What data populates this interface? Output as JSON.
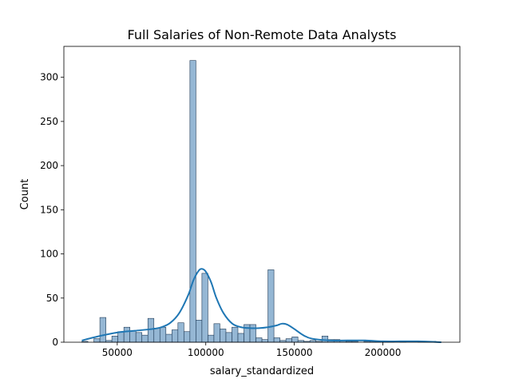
{
  "chart_data": {
    "type": "bar",
    "title": "Full Salaries of Non-Remote Data Analysts",
    "xlabel": "salary_standardized",
    "ylabel": "Count",
    "xlim": [
      19848,
      243532
    ],
    "ylim": [
      0,
      335
    ],
    "xticks": [
      50000,
      100000,
      150000,
      200000
    ],
    "xtick_labels": [
      "50000",
      "100000",
      "150000",
      "200000"
    ],
    "yticks": [
      0,
      50,
      100,
      150,
      200,
      250,
      300
    ],
    "ytick_labels": [
      "0",
      "50",
      "100",
      "150",
      "200",
      "250",
      "300"
    ],
    "grid": false,
    "bar_fill": "#8fb3d2",
    "bar_edge": "#1f3a56",
    "kde_color": "#1f77b4",
    "bins": {
      "start": 30016,
      "width": 3390,
      "counts": [
        1,
        0,
        4,
        28,
        2,
        7,
        12,
        17,
        13,
        11,
        8,
        27,
        16,
        17,
        9,
        14,
        22,
        12,
        319,
        25,
        78,
        8,
        21,
        15,
        11,
        17,
        10,
        20,
        20,
        5,
        3,
        82,
        5,
        2,
        4,
        6,
        2,
        1,
        2,
        1,
        7,
        3,
        3,
        2,
        1,
        1,
        0,
        1,
        1,
        1,
        1,
        1,
        0,
        1,
        0,
        0,
        1,
        1,
        1,
        0
      ]
    },
    "kde": {
      "x": [
        30000,
        40000,
        50000,
        60000,
        70000,
        75000,
        80000,
        85000,
        90000,
        93000,
        96000,
        98000,
        100000,
        103000,
        106000,
        110000,
        115000,
        120000,
        125000,
        130000,
        135000,
        140000,
        143000,
        146000,
        150000,
        155000,
        160000,
        170000,
        180000,
        190000,
        200000,
        210000,
        220000,
        233000
      ],
      "y": [
        2,
        7,
        11,
        13,
        15,
        17,
        22,
        33,
        53,
        70,
        81,
        83,
        80,
        68,
        50,
        33,
        21,
        17,
        16,
        16,
        17,
        19,
        21,
        20,
        15,
        8,
        4,
        2,
        2,
        2,
        1,
        1,
        1,
        0
      ]
    }
  }
}
